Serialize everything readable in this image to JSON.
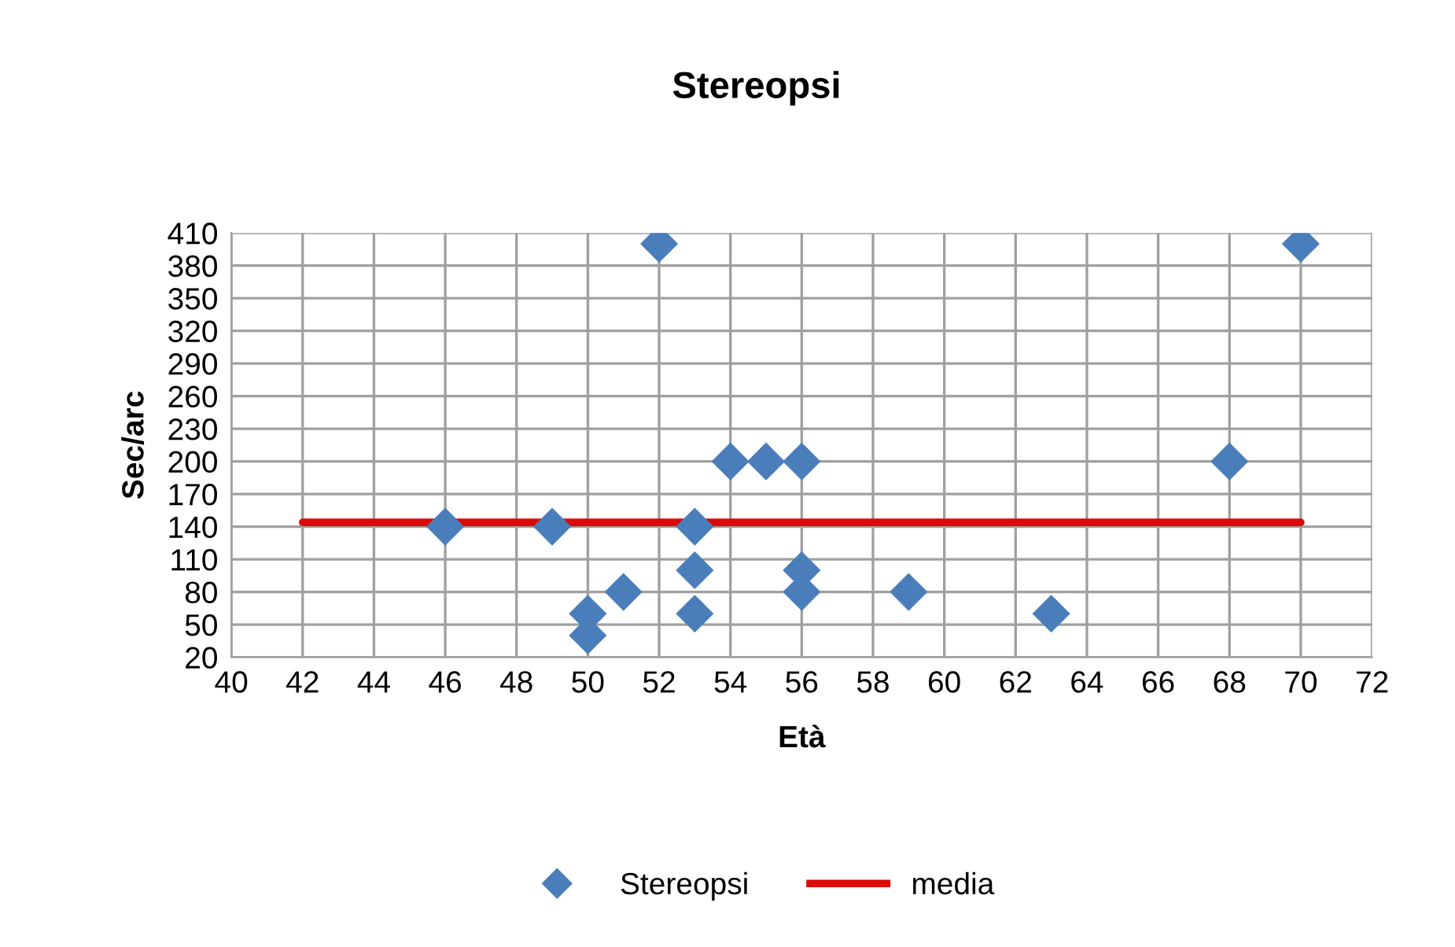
{
  "chart_data": {
    "type": "scatter",
    "title": "Stereopsi",
    "xlabel": "Età",
    "ylabel": "Sec/arc",
    "series": [
      {
        "name": "Stereopsi",
        "color": "#4a7ebb",
        "marker": "diamond",
        "x": [
          46,
          49,
          50,
          50,
          51,
          52,
          53,
          53,
          53,
          54,
          55,
          56,
          56,
          56,
          59,
          63,
          68,
          70
        ],
        "values": [
          140,
          140,
          60,
          40,
          80,
          400,
          140,
          100,
          60,
          200,
          200,
          200,
          100,
          80,
          80,
          60,
          200,
          400
        ]
      },
      {
        "name": "media",
        "type": "line",
        "color": "#dd0a0a",
        "marker": "none",
        "line_style": "solid",
        "x": [
          42,
          70
        ],
        "values": [
          144,
          144
        ]
      }
    ],
    "xlim": [
      40,
      72
    ],
    "xticks": [
      40,
      42,
      44,
      46,
      48,
      50,
      52,
      54,
      56,
      58,
      60,
      62,
      64,
      66,
      68,
      70,
      72
    ],
    "ylim": [
      20,
      410
    ],
    "yticks": [
      20,
      50,
      80,
      110,
      140,
      170,
      200,
      230,
      260,
      290,
      320,
      350,
      380,
      410
    ],
    "grid": true,
    "legend": "bottom"
  }
}
